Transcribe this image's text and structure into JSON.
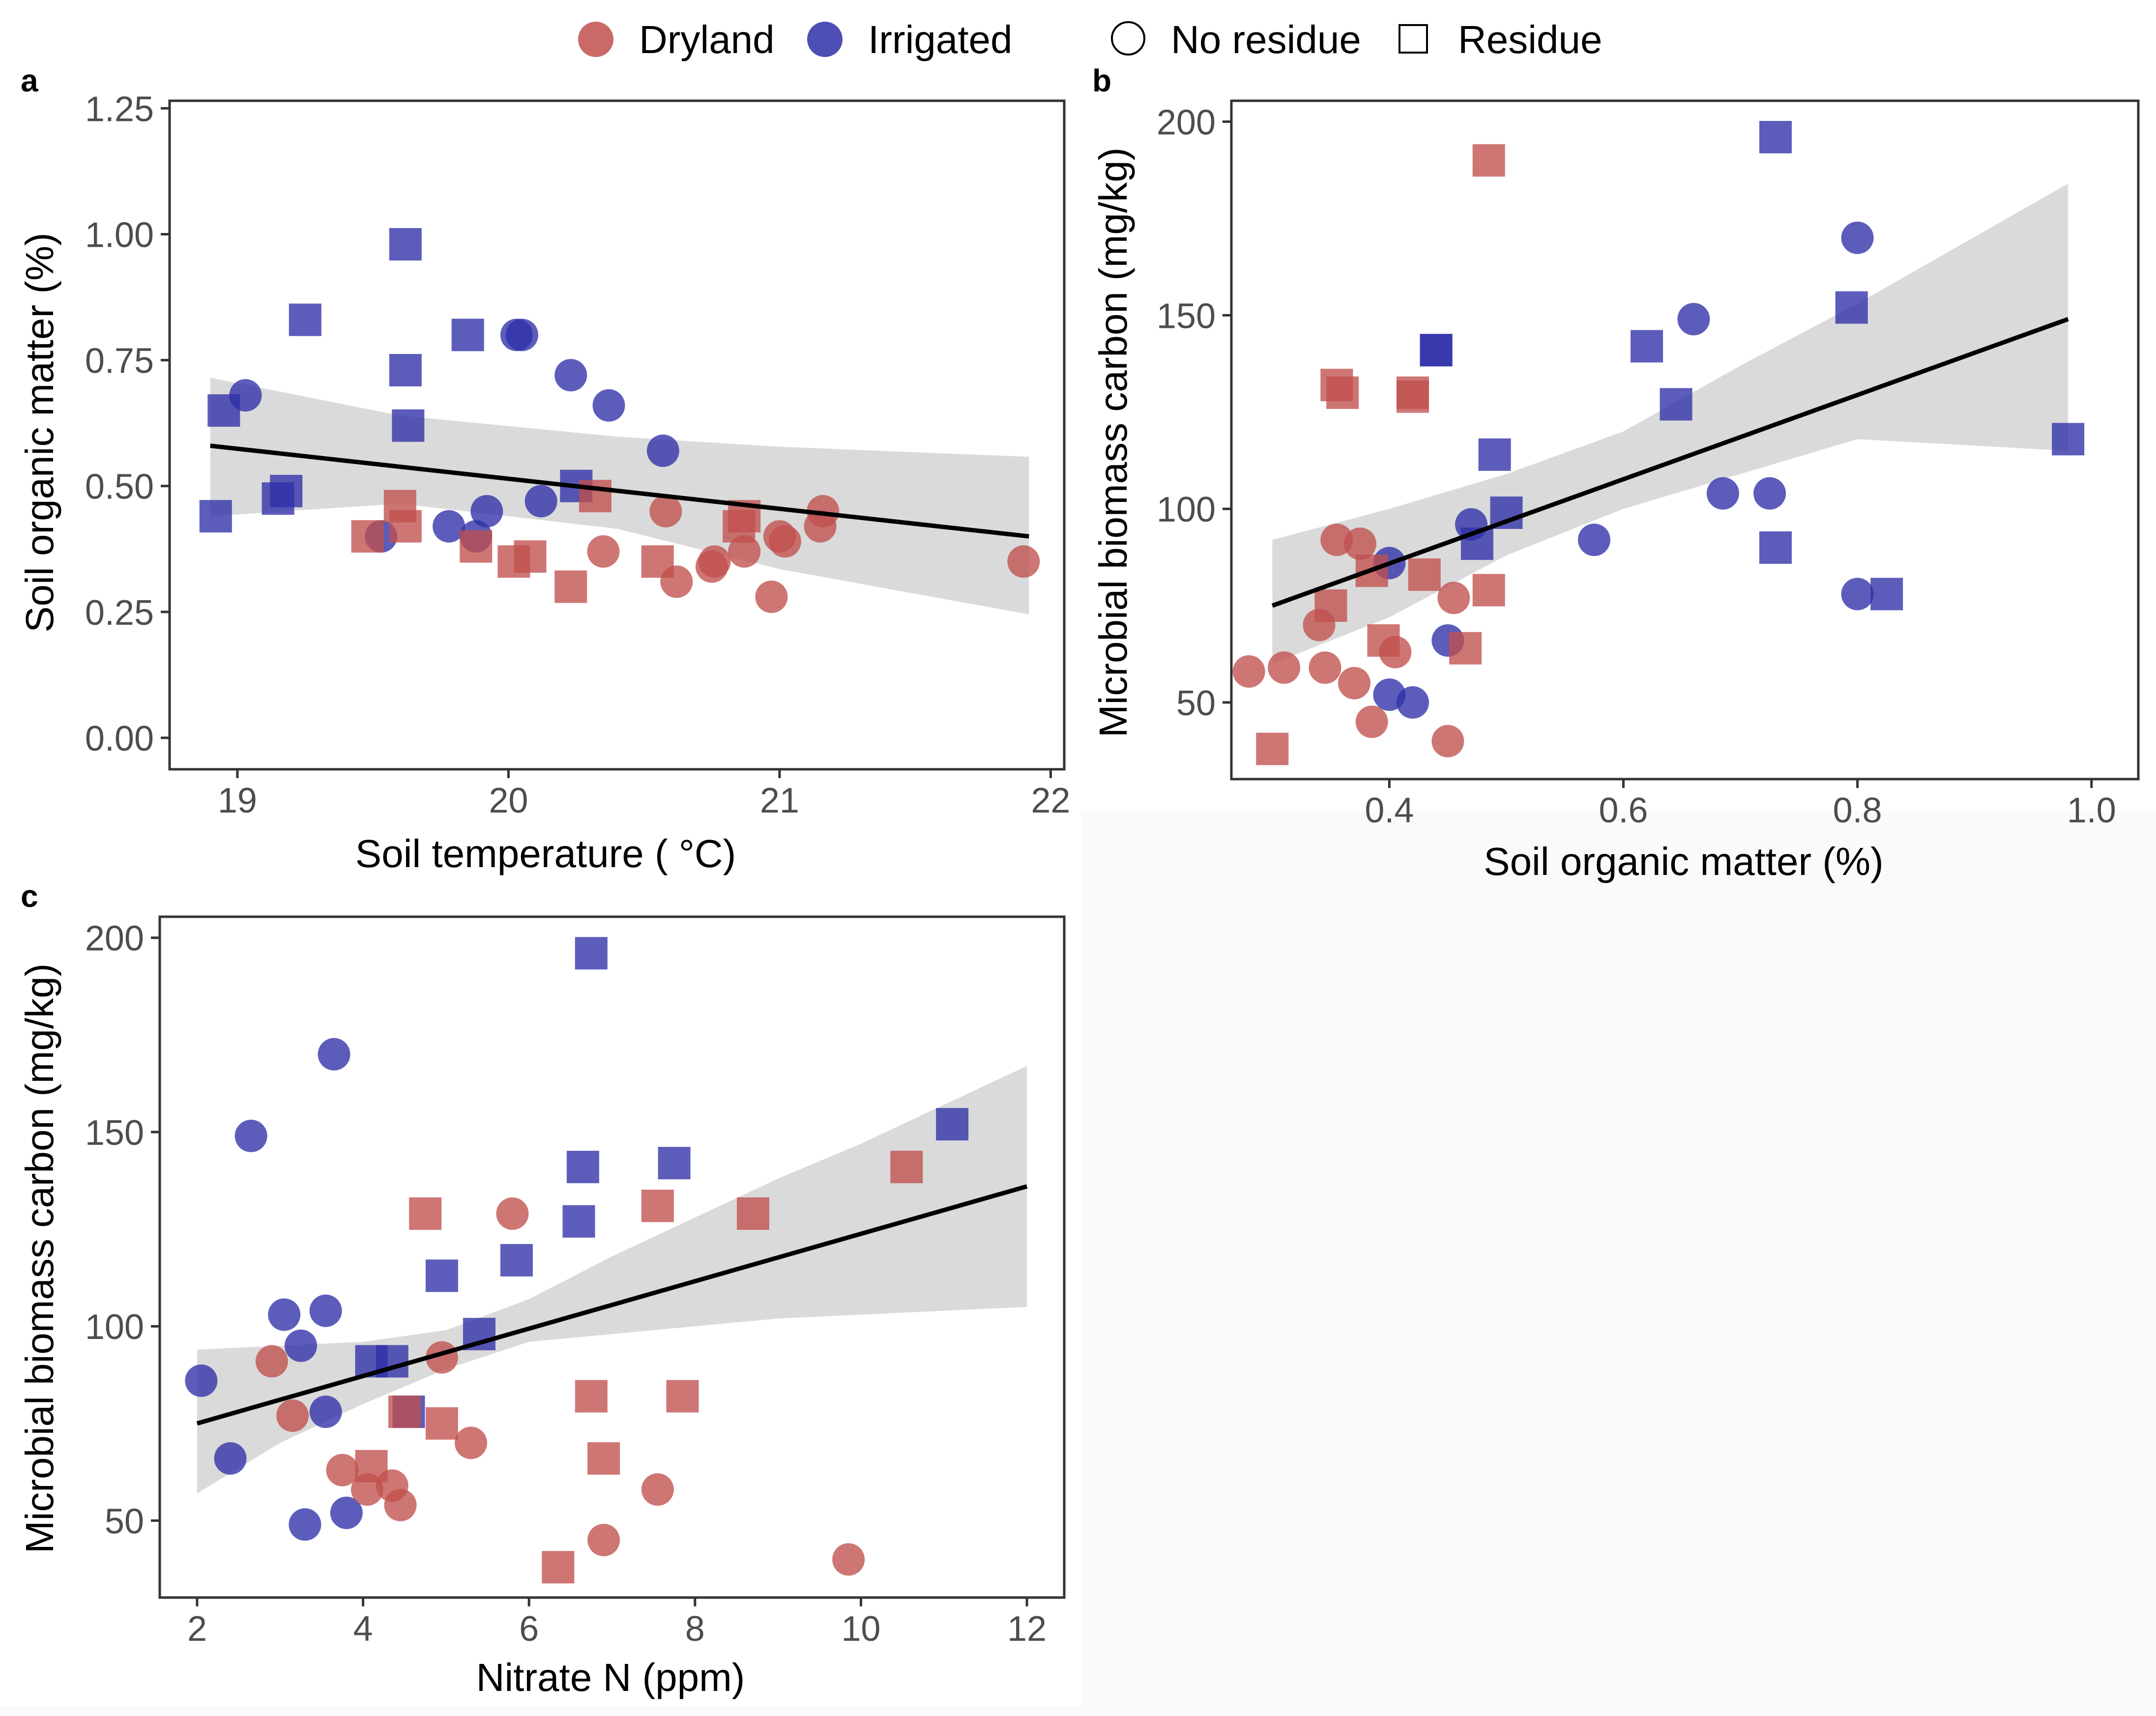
{
  "legend": {
    "management_items": [
      {
        "label": "Dryland",
        "color": "#c0504d"
      },
      {
        "label": "Irrigated",
        "color": "#2e30a8"
      }
    ],
    "residue_items": [
      {
        "label": "No residue",
        "shape": "circle"
      },
      {
        "label": "Residue",
        "shape": "square"
      }
    ]
  },
  "colors": {
    "dryland": "#c0504d",
    "irrigated": "#2e30a8",
    "ribbon": "#d3d3d3",
    "line": "#000000",
    "panel_border": "#333333",
    "tick_text": "#4d4d4d"
  },
  "chart_data": [
    {
      "panel_label": "a",
      "type": "scatter",
      "xlabel": "Soil temperature ( °C)",
      "ylabel": "Soil organic matter (%)",
      "xlim": [
        18.75,
        22.05
      ],
      "ylim": [
        -0.0625,
        1.265
      ],
      "x_ticks": [
        19,
        20,
        21,
        22
      ],
      "x_tick_labels": [
        "19",
        "20",
        "21",
        "22"
      ],
      "y_ticks": [
        0,
        0.25,
        0.5,
        0.75,
        1.0,
        1.25
      ],
      "y_tick_labels": [
        "0.00",
        "0.25",
        "0.50",
        "0.75",
        "1.00",
        "1.25"
      ],
      "fit": {
        "x": [
          18.9,
          21.92
        ],
        "y": [
          0.58,
          0.4
        ]
      },
      "ribbon": {
        "x": [
          18.9,
          19.6,
          20.4,
          21.0,
          21.92
        ],
        "upper": [
          0.715,
          0.64,
          0.598,
          0.578,
          0.558
        ],
        "lower": [
          0.44,
          0.465,
          0.415,
          0.335,
          0.245
        ]
      },
      "series": [
        {
          "name": "Irrigated - Residue",
          "group": "irrigated",
          "shape": "square",
          "x": [
            18.92,
            18.95,
            19.15,
            19.18,
            19.25,
            19.62,
            19.62,
            19.63,
            19.85,
            20.25
          ],
          "y": [
            0.44,
            0.65,
            0.475,
            0.49,
            0.83,
            0.98,
            0.73,
            0.62,
            0.8,
            0.5
          ]
        },
        {
          "name": "Irrigated - No residue",
          "group": "irrigated",
          "shape": "circle",
          "x": [
            19.03,
            19.53,
            19.78,
            19.88,
            19.92,
            20.03,
            20.05,
            20.12,
            20.23,
            20.37,
            20.57
          ],
          "y": [
            0.68,
            0.4,
            0.42,
            0.4,
            0.45,
            0.8,
            0.8,
            0.47,
            0.72,
            0.66,
            0.57
          ]
        },
        {
          "name": "Dryland - Residue",
          "group": "dryland",
          "shape": "square",
          "x": [
            19.48,
            19.6,
            19.62,
            19.88,
            20.02,
            20.08,
            20.23,
            20.32,
            20.55,
            20.85,
            20.87
          ],
          "y": [
            0.4,
            0.46,
            0.42,
            0.38,
            0.35,
            0.36,
            0.3,
            0.48,
            0.35,
            0.42,
            0.44
          ]
        },
        {
          "name": "Dryland - No residue",
          "group": "dryland",
          "shape": "circle",
          "x": [
            20.35,
            20.58,
            20.62,
            20.75,
            20.76,
            20.87,
            20.97,
            21.0,
            21.02,
            21.15,
            21.16,
            21.9
          ],
          "y": [
            0.37,
            0.45,
            0.31,
            0.34,
            0.35,
            0.37,
            0.28,
            0.4,
            0.39,
            0.42,
            0.45,
            0.35
          ]
        }
      ]
    },
    {
      "panel_label": "b",
      "type": "scatter",
      "xlabel": "Soil organic matter (%)",
      "ylabel": "Microbial biomass carbon (mg/kg)",
      "xlim": [
        0.265,
        1.04
      ],
      "ylim": [
        30.2,
        205.4
      ],
      "x_ticks": [
        0.4,
        0.6,
        0.8,
        1.0
      ],
      "x_tick_labels": [
        "0.4",
        "0.6",
        "0.8",
        "1.0"
      ],
      "y_ticks": [
        50,
        100,
        150,
        200
      ],
      "y_tick_labels": [
        "50",
        "100",
        "150",
        "200"
      ],
      "fit": {
        "x": [
          0.3,
          0.98
        ],
        "y": [
          75,
          149
        ]
      },
      "ribbon": {
        "x": [
          0.3,
          0.4,
          0.5,
          0.6,
          0.7,
          0.8,
          0.98
        ],
        "upper": [
          92,
          100,
          109,
          120,
          137,
          153,
          184
        ],
        "lower": [
          60,
          72,
          88,
          100,
          109,
          118,
          115
        ]
      },
      "series": [
        {
          "name": "Irrigated - Residue",
          "group": "irrigated",
          "shape": "square",
          "x": [
            0.44,
            0.44,
            0.475,
            0.49,
            0.5,
            0.62,
            0.645,
            0.73,
            0.73,
            0.795,
            0.825,
            0.98
          ],
          "y": [
            141,
            141,
            91,
            114,
            99,
            142,
            127,
            196,
            90,
            152,
            78,
            118
          ]
        },
        {
          "name": "Irrigated - No residue",
          "group": "irrigated",
          "shape": "circle",
          "x": [
            0.4,
            0.4,
            0.42,
            0.45,
            0.47,
            0.575,
            0.66,
            0.685,
            0.725,
            0.8,
            0.8
          ],
          "y": [
            86,
            52,
            50,
            66,
            96,
            92,
            149,
            104,
            104,
            78,
            170
          ]
        },
        {
          "name": "Dryland - Residue",
          "group": "dryland",
          "shape": "square",
          "x": [
            0.3,
            0.35,
            0.355,
            0.36,
            0.385,
            0.395,
            0.42,
            0.42,
            0.43,
            0.465,
            0.485,
            0.485
          ],
          "y": [
            38,
            75,
            132,
            130,
            84,
            66,
            130,
            129,
            83,
            64,
            190,
            79
          ]
        },
        {
          "name": "Dryland - No residue",
          "group": "dryland",
          "shape": "circle",
          "x": [
            0.28,
            0.31,
            0.34,
            0.345,
            0.355,
            0.37,
            0.375,
            0.385,
            0.405,
            0.45,
            0.455
          ],
          "y": [
            58,
            59,
            70,
            59,
            92,
            55,
            91,
            45,
            63,
            40,
            77
          ]
        }
      ]
    },
    {
      "panel_label": "c",
      "type": "scatter",
      "xlabel": "Nitrate N (ppm)",
      "ylabel": "Microbial biomass carbon (mg/kg)",
      "xlim": [
        1.55,
        12.45
      ],
      "ylim": [
        30.2,
        205.4
      ],
      "x_ticks": [
        2,
        4,
        6,
        8,
        10,
        12
      ],
      "x_tick_labels": [
        "2",
        "4",
        "6",
        "8",
        "10",
        "12"
      ],
      "y_ticks": [
        50,
        100,
        150,
        200
      ],
      "y_tick_labels": [
        "50",
        "100",
        "150",
        "200"
      ],
      "fit": {
        "x": [
          2.0,
          12.0
        ],
        "y": [
          75,
          136
        ]
      },
      "ribbon": {
        "x": [
          2.0,
          3.0,
          4.0,
          5.0,
          6.0,
          7.0,
          8.0,
          9.0,
          10.0,
          11.0,
          12.0
        ],
        "upper": [
          94,
          95,
          96,
          99,
          107,
          118,
          128,
          138,
          147,
          157,
          167
        ],
        "lower": [
          57,
          70,
          80,
          89,
          96,
          98,
          100,
          102,
          103,
          104,
          105
        ]
      },
      "series": [
        {
          "name": "Irrigated - Residue",
          "group": "irrigated",
          "shape": "square",
          "x": [
            4.1,
            4.35,
            4.55,
            4.95,
            5.4,
            5.85,
            6.6,
            6.65,
            6.75,
            7.75,
            11.1
          ],
          "y": [
            91,
            91,
            78,
            113,
            98,
            117,
            127,
            141,
            196,
            142,
            152
          ]
        },
        {
          "name": "Irrigated - No residue",
          "group": "irrigated",
          "shape": "circle",
          "x": [
            2.05,
            2.4,
            2.65,
            3.05,
            3.25,
            3.3,
            3.55,
            3.55,
            3.65,
            3.8
          ],
          "y": [
            86,
            66,
            149,
            103,
            95,
            49,
            78,
            104,
            170,
            52
          ]
        },
        {
          "name": "Dryland - Residue",
          "group": "dryland",
          "shape": "square",
          "x": [
            4.1,
            4.5,
            4.75,
            4.95,
            6.35,
            6.75,
            6.9,
            7.55,
            7.85,
            8.7,
            10.55
          ],
          "y": [
            64,
            78,
            129,
            75,
            38,
            82,
            66,
            131,
            82,
            129,
            141
          ]
        },
        {
          "name": "Dryland - No residue",
          "group": "dryland",
          "shape": "circle",
          "x": [
            2.9,
            3.15,
            3.75,
            4.05,
            4.35,
            4.45,
            4.95,
            5.3,
            5.8,
            6.9,
            7.55,
            9.85
          ],
          "y": [
            91,
            77,
            63,
            58,
            59,
            54,
            92,
            70,
            129,
            45,
            58,
            40
          ]
        }
      ]
    }
  ]
}
